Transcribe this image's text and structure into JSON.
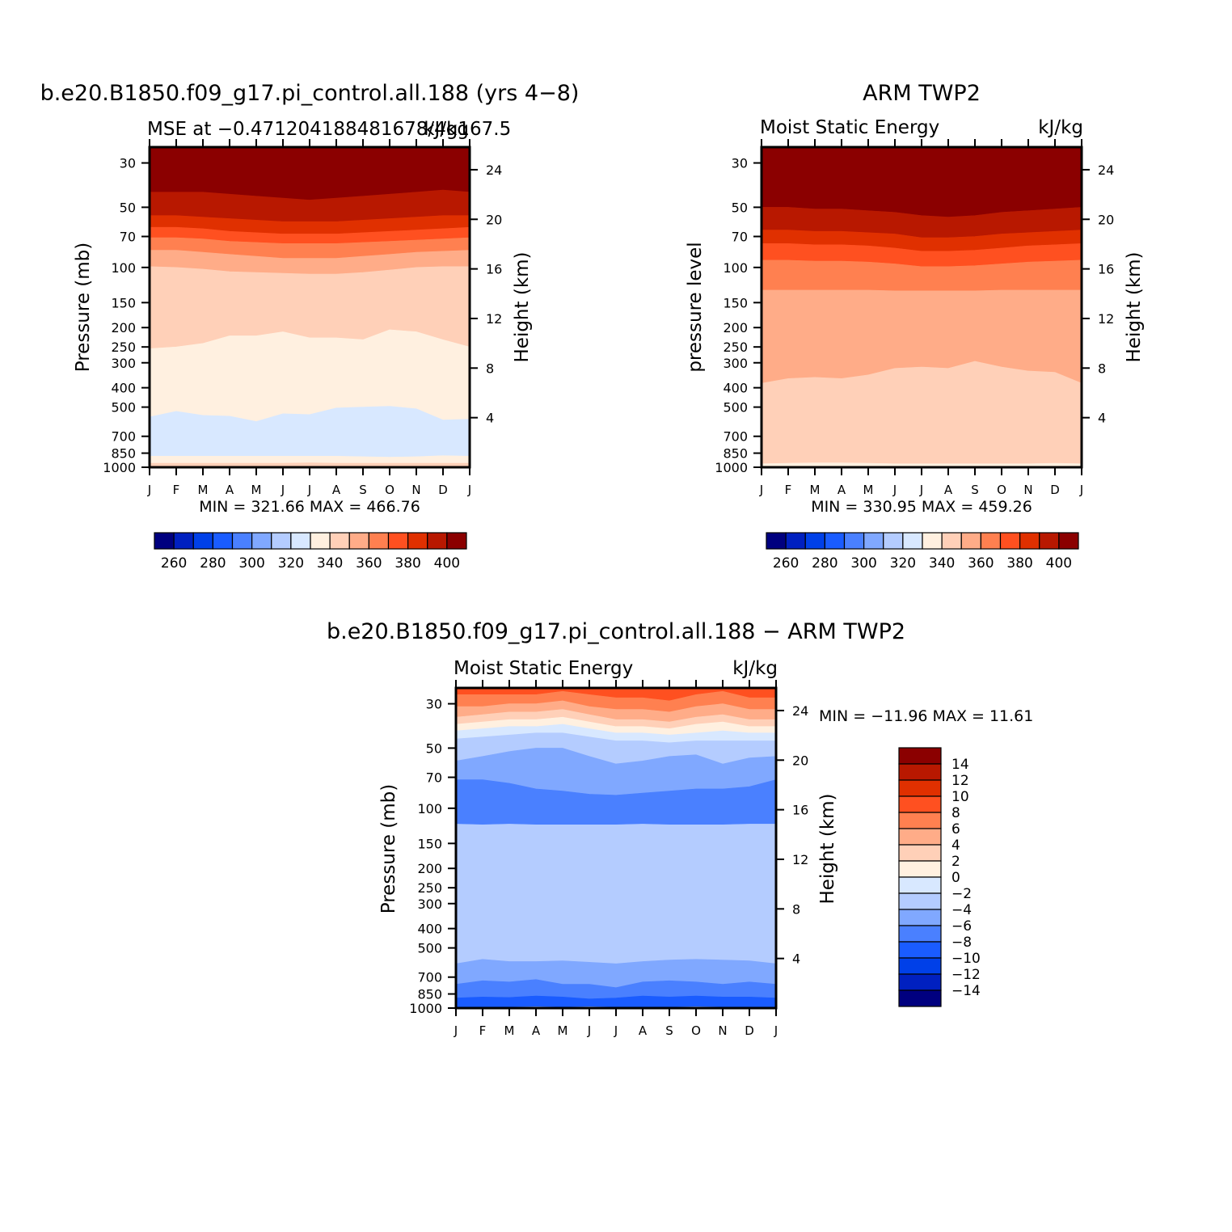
{
  "colors": {
    "abs_scale": [
      "#00007f",
      "#0020c0",
      "#0040e8",
      "#1a5cff",
      "#4a80ff",
      "#80a8ff",
      "#b4ccff",
      "#d8e8ff",
      "#fff0e0",
      "#ffd0b8",
      "#ffac88",
      "#ff8050",
      "#ff5020",
      "#e03000",
      "#b81800",
      "#8b0000"
    ],
    "diff_scale": [
      "#00007f",
      "#0020c0",
      "#0040e8",
      "#1a5cff",
      "#4a80ff",
      "#80a8ff",
      "#b4ccff",
      "#d8e8ff",
      "#fff0e0",
      "#ffd0b8",
      "#ffac88",
      "#ff8050",
      "#ff5020",
      "#e03000",
      "#b81800",
      "#8b0000"
    ]
  },
  "chart_data": [
    {
      "type": "heatmap",
      "id": "model",
      "title": "b.e20.B1850.f09_g17.pi_control.all.188 (yrs 4−8)",
      "subtitle_left": "MSE at −0.471204188481678/4g167.5",
      "subtitle_right": "kJ/kg",
      "ylabel": "Pressure (mb)",
      "y2label": "Height (km)",
      "months": [
        "J",
        "F",
        "M",
        "A",
        "M",
        "J",
        "J",
        "A",
        "S",
        "O",
        "N",
        "D",
        "J"
      ],
      "pressure_ticks": [
        "30",
        "50",
        "70",
        "100",
        "150",
        "200",
        "250",
        "300",
        "400",
        "500",
        "700",
        "850",
        "1000"
      ],
      "height_ticks": [
        "24",
        "20",
        "16",
        "12",
        "8",
        "4"
      ],
      "stats": "MIN = 321.66 MAX = 466.76",
      "ylim_mb": [
        1000,
        25
      ],
      "levels_kJ_per_kg": [
        250,
        260,
        270,
        280,
        290,
        300,
        310,
        320,
        330,
        340,
        350,
        360,
        370,
        380,
        390,
        400
      ],
      "band_boundaries_mb": [
        [
          42,
          42,
          42,
          43,
          44,
          45,
          46,
          45,
          44,
          43,
          42,
          41,
          42
        ],
        [
          55,
          55,
          56,
          57,
          58,
          59,
          59,
          59,
          58,
          57,
          56,
          55,
          55
        ],
        [
          63,
          63,
          64,
          66,
          67,
          68,
          68,
          68,
          67,
          66,
          65,
          64,
          63
        ],
        [
          71,
          71,
          72,
          74,
          75,
          76,
          76,
          76,
          75,
          74,
          73,
          72,
          71
        ],
        [
          82,
          82,
          84,
          86,
          88,
          90,
          90,
          90,
          88,
          86,
          84,
          83,
          82
        ],
        [
          99,
          100,
          102,
          105,
          106,
          107,
          108,
          108,
          106,
          103,
          100,
          99,
          99
        ],
        [
          255,
          250,
          240,
          220,
          220,
          210,
          225,
          225,
          230,
          205,
          210,
          230,
          250
        ],
        [
          560,
          525,
          550,
          555,
          590,
          540,
          545,
          505,
          500,
          495,
          510,
          580,
          575
        ],
        [
          880,
          880,
          880,
          880,
          880,
          880,
          880,
          880,
          885,
          890,
          885,
          875,
          880
        ],
        [
          955,
          955,
          955,
          955,
          955,
          955,
          950,
          955,
          955,
          955,
          955,
          955,
          955
        ]
      ],
      "band_colors": [
        "#8b0000",
        "#b81800",
        "#e03000",
        "#ff5020",
        "#ff8050",
        "#ffac88",
        "#ffd0b8",
        "#fff0e0",
        "#d8e8ff",
        "#fff0e0",
        "#ffd0b8"
      ],
      "colorbar_labels": [
        "260",
        "280",
        "300",
        "320",
        "340",
        "360",
        "380",
        "400"
      ]
    },
    {
      "type": "heatmap",
      "id": "obs",
      "title": "ARM TWP2",
      "subtitle_left": "Moist Static Energy",
      "subtitle_right": "kJ/kg",
      "ylabel": "pressure level",
      "y2label": "Height (km)",
      "months": [
        "J",
        "F",
        "M",
        "A",
        "M",
        "J",
        "J",
        "A",
        "S",
        "O",
        "N",
        "D",
        "J"
      ],
      "pressure_ticks": [
        "30",
        "50",
        "70",
        "100",
        "150",
        "200",
        "250",
        "300",
        "400",
        "500",
        "700",
        "850",
        "1000"
      ],
      "height_ticks": [
        "24",
        "20",
        "16",
        "12",
        "8",
        "4"
      ],
      "stats": "MIN = 330.95 MAX = 459.26",
      "ylim_mb": [
        1000,
        25
      ],
      "levels_kJ_per_kg": [
        250,
        260,
        270,
        280,
        290,
        300,
        310,
        320,
        330,
        340,
        350,
        360,
        370,
        380,
        390,
        400
      ],
      "band_boundaries_mb": [
        [
          50,
          50,
          51,
          51,
          52,
          53,
          55,
          56,
          55,
          53,
          52,
          51,
          50
        ],
        [
          65,
          65,
          66,
          66,
          67,
          68,
          71,
          71,
          70,
          68,
          67,
          66,
          65
        ],
        [
          76,
          76,
          77,
          77,
          78,
          80,
          83,
          83,
          82,
          80,
          78,
          77,
          76
        ],
        [
          92,
          92,
          93,
          93,
          94,
          96,
          99,
          99,
          98,
          96,
          94,
          93,
          92
        ],
        [
          130,
          130,
          130,
          130,
          130,
          131,
          131,
          131,
          131,
          130,
          130,
          130,
          130
        ],
        [
          380,
          360,
          355,
          360,
          345,
          320,
          315,
          320,
          295,
          315,
          330,
          335,
          380
        ],
        [
          960,
          955,
          950,
          950,
          955,
          960,
          960,
          960,
          960,
          960,
          960,
          955,
          960
        ]
      ],
      "band_colors": [
        "#8b0000",
        "#b81800",
        "#e03000",
        "#ff5020",
        "#ff8050",
        "#ffac88",
        "#ffd0b8",
        "#fff0e0",
        "#ffd0b8"
      ],
      "colorbar_labels": [
        "260",
        "280",
        "300",
        "320",
        "340",
        "360",
        "380",
        "400"
      ]
    },
    {
      "type": "heatmap",
      "id": "diff",
      "title": "b.e20.B1850.f09_g17.pi_control.all.188 − ARM TWP2",
      "subtitle_left": "Moist Static Energy",
      "subtitle_right": "kJ/kg",
      "ylabel": "Pressure (mb)",
      "y2label": "Height (km)",
      "months": [
        "J",
        "F",
        "M",
        "A",
        "M",
        "J",
        "J",
        "A",
        "S",
        "O",
        "N",
        "D",
        "J"
      ],
      "pressure_ticks": [
        "30",
        "50",
        "70",
        "100",
        "150",
        "200",
        "250",
        "300",
        "400",
        "500",
        "700",
        "850",
        "1000"
      ],
      "height_ticks": [
        "24",
        "20",
        "16",
        "12",
        "8",
        "4"
      ],
      "stats": "MIN = −11.96 MAX =   11.61",
      "ylim_mb": [
        1000,
        25
      ],
      "levels_kJ_per_kg": [
        -14,
        -12,
        -10,
        -8,
        -6,
        -4,
        -2,
        0,
        2,
        4,
        6,
        8,
        10,
        12,
        14
      ],
      "band_boundaries_mb": [
        [
          27,
          27,
          27,
          27,
          26,
          27,
          28,
          28,
          29,
          27,
          26,
          28,
          28
        ],
        [
          31,
          31,
          30,
          30,
          29,
          31,
          32,
          32,
          33,
          31,
          30,
          32,
          32
        ],
        [
          35,
          34,
          33,
          33,
          32,
          34,
          36,
          36,
          37,
          35,
          34,
          36,
          36
        ],
        [
          38,
          37,
          36,
          36,
          35,
          37,
          39,
          39,
          40,
          38,
          37,
          39,
          39
        ],
        [
          41,
          40,
          39,
          39,
          38,
          40,
          42,
          42,
          43,
          42,
          41,
          42,
          42
        ],
        [
          45,
          44,
          43,
          42,
          42,
          44,
          46,
          46,
          47,
          46,
          46,
          46,
          46
        ],
        [
          58,
          55,
          52,
          50,
          50,
          55,
          60,
          58,
          55,
          54,
          60,
          56,
          55
        ],
        [
          72,
          72,
          75,
          80,
          82,
          85,
          86,
          84,
          82,
          80,
          80,
          78,
          72
        ],
        [
          120,
          121,
          120,
          121,
          121,
          121,
          121,
          120,
          121,
          121,
          121,
          120,
          120
        ],
        [
          600,
          570,
          585,
          585,
          580,
          590,
          600,
          585,
          575,
          570,
          575,
          580,
          600
        ],
        [
          760,
          730,
          740,
          720,
          760,
          760,
          790,
          740,
          730,
          740,
          760,
          740,
          760
        ],
        [
          890,
          880,
          885,
          870,
          880,
          900,
          890,
          870,
          880,
          870,
          880,
          880,
          890
        ],
        [
          990,
          990,
          990,
          985,
          990,
          985,
          990,
          990,
          990,
          985,
          990,
          990,
          990
        ]
      ],
      "band_colors": [
        "#ff5020",
        "#ff8050",
        "#ffac88",
        "#ffd0b8",
        "#fff0e0",
        "#d8e8ff",
        "#b4ccff",
        "#80a8ff",
        "#4a80ff",
        "#b4ccff",
        "#80a8ff",
        "#4a80ff",
        "#1a5cff",
        "#b4ccff"
      ],
      "colorbar_labels": [
        "14",
        "12",
        "10",
        "8",
        "6",
        "4",
        "2",
        "0",
        "−2",
        "−4",
        "−6",
        "−8",
        "−10",
        "−12",
        "−14"
      ]
    }
  ]
}
